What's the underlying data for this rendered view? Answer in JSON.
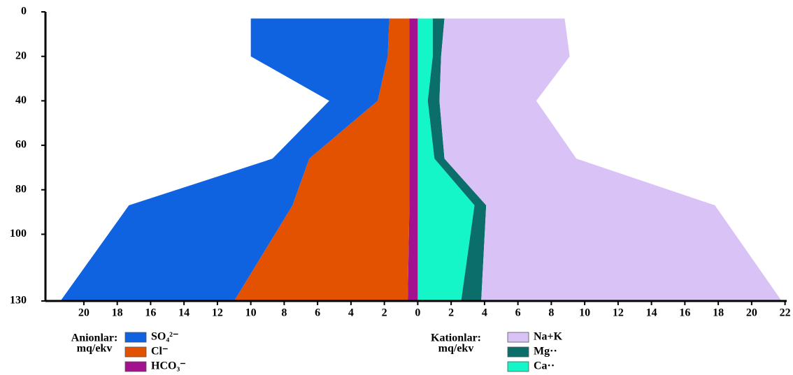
{
  "chart_data": {
    "type": "area",
    "y": [
      3,
      20,
      40,
      66,
      87,
      130
    ],
    "series": [
      {
        "name": "HCO₃⁻",
        "side": "left",
        "color": "#a3128e",
        "values": [
          0.5,
          0.5,
          0.5,
          0.5,
          0.5,
          0.6
        ]
      },
      {
        "name": "Cl⁻",
        "side": "left",
        "color": "#e35200",
        "values": [
          1.2,
          1.3,
          1.9,
          6.0,
          7.0,
          10.4
        ]
      },
      {
        "name": "SO₄²⁻",
        "side": "left",
        "color": "#0f62e0",
        "values": [
          8.3,
          8.2,
          2.9,
          2.2,
          9.8,
          10.4
        ]
      },
      {
        "name": "Ca··",
        "side": "right",
        "color": "#14f5c8",
        "values": [
          0.9,
          0.9,
          0.6,
          1.0,
          3.4,
          2.6
        ]
      },
      {
        "name": "Mg··",
        "side": "right",
        "color": "#0b6e6a",
        "values": [
          0.7,
          0.5,
          0.7,
          0.6,
          0.7,
          1.2
        ]
      },
      {
        "name": "Na+K",
        "side": "right",
        "color": "#d8c2f6",
        "values": [
          7.2,
          7.7,
          5.8,
          7.9,
          13.7,
          18.0
        ]
      }
    ],
    "legend_groups": [
      {
        "title": "Anionlar:",
        "unit": "mq/ekv",
        "side": "left"
      },
      {
        "title": "Kationlar:",
        "unit": "mq/ekv",
        "side": "right"
      }
    ],
    "xlim": [
      -22.3,
      22.1
    ],
    "xticks": [
      {
        "value": -20,
        "label": "20"
      },
      {
        "value": -18,
        "label": "18"
      },
      {
        "value": -16,
        "label": "16"
      },
      {
        "value": -14,
        "label": "14"
      },
      {
        "value": -12,
        "label": "12"
      },
      {
        "value": -10,
        "label": "10"
      },
      {
        "value": -8,
        "label": "8"
      },
      {
        "value": -6,
        "label": "6"
      },
      {
        "value": -4,
        "label": "4"
      },
      {
        "value": -2,
        "label": "2"
      },
      0,
      2,
      4,
      6,
      8,
      10,
      12,
      14,
      16,
      18,
      20,
      22
    ],
    "ylim": [
      0,
      130
    ],
    "yticks": [
      0,
      20,
      40,
      60,
      80,
      100,
      130
    ],
    "y_inverted": true
  }
}
